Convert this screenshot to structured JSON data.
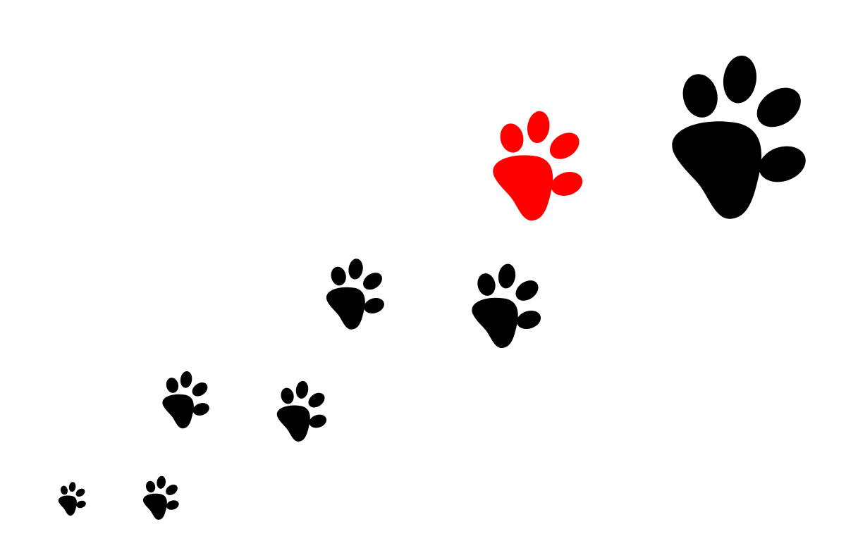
{
  "scene": {
    "background_color": "#ffffff",
    "description_icon": "paw-print-trail-icon",
    "colors": {
      "black_paw": "#000000",
      "red_paw": "#ff0000"
    },
    "paws": [
      {
        "name": "paw-print-1",
        "icon": "paw-print-icon",
        "color": "black"
      },
      {
        "name": "paw-print-2",
        "icon": "paw-print-icon",
        "color": "black"
      },
      {
        "name": "paw-print-3",
        "icon": "paw-print-icon",
        "color": "black"
      },
      {
        "name": "paw-print-4",
        "icon": "paw-print-icon",
        "color": "black"
      },
      {
        "name": "paw-print-5",
        "icon": "paw-print-icon",
        "color": "black"
      },
      {
        "name": "paw-print-6",
        "icon": "paw-print-icon",
        "color": "black"
      },
      {
        "name": "paw-print-7-red",
        "icon": "paw-print-icon",
        "color": "red"
      },
      {
        "name": "paw-print-8",
        "icon": "paw-print-icon",
        "color": "black"
      }
    ]
  }
}
